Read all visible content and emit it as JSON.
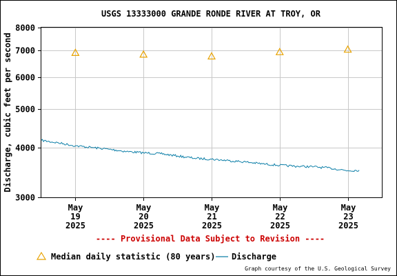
{
  "chart_data": {
    "type": "line",
    "title": "USGS 13333000 GRANDE RONDE RIVER AT TROY, OR",
    "ylabel": "Discharge, cubic feet per second",
    "xlabel": "",
    "y_scale": "log",
    "ylim": [
      3000,
      8000
    ],
    "y_ticks": [
      {
        "value": 3000,
        "label": "3000"
      },
      {
        "value": 4000,
        "label": "4000"
      },
      {
        "value": 5000,
        "label": "5000"
      },
      {
        "value": 6000,
        "label": "6000"
      },
      {
        "value": 7000,
        "label": "7000"
      },
      {
        "value": 8000,
        "label": "8000"
      }
    ],
    "xlim": [
      "2025-05-18 12:00",
      "2025-05-23 12:00"
    ],
    "x_ticks": [
      {
        "value": "2025-05-19",
        "line1": "May",
        "line2": "19",
        "line3": "2025"
      },
      {
        "value": "2025-05-20",
        "line1": "May",
        "line2": "20",
        "line3": "2025"
      },
      {
        "value": "2025-05-21",
        "line1": "May",
        "line2": "21",
        "line3": "2025"
      },
      {
        "value": "2025-05-22",
        "line1": "May",
        "line2": "22",
        "line3": "2025"
      },
      {
        "value": "2025-05-23",
        "line1": "May",
        "line2": "23",
        "line3": "2025"
      }
    ],
    "grid": true,
    "series": [
      {
        "name": "Median daily statistic (80 years)",
        "type": "scatter",
        "marker": "triangle",
        "color": "#E8A200",
        "x": [
          "2025-05-19",
          "2025-05-20",
          "2025-05-21",
          "2025-05-22",
          "2025-05-23"
        ],
        "values": [
          6920,
          6850,
          6780,
          6950,
          7050
        ]
      },
      {
        "name": "Discharge",
        "type": "line",
        "color": "#0D7FA8",
        "x": [
          "2025-05-18 12:00",
          "2025-05-18 18:00",
          "2025-05-19 00:00",
          "2025-05-19 06:00",
          "2025-05-19 12:00",
          "2025-05-19 18:00",
          "2025-05-20 00:00",
          "2025-05-20 06:00",
          "2025-05-20 12:00",
          "2025-05-20 18:00",
          "2025-05-21 00:00",
          "2025-05-21 06:00",
          "2025-05-21 12:00",
          "2025-05-21 18:00",
          "2025-05-22 00:00",
          "2025-05-22 06:00",
          "2025-05-22 12:00",
          "2025-05-22 18:00",
          "2025-05-23 00:00",
          "2025-05-23 04:00"
        ],
        "values": [
          4170,
          4110,
          4040,
          4000,
          3960,
          3910,
          3880,
          3860,
          3810,
          3760,
          3740,
          3710,
          3680,
          3640,
          3610,
          3590,
          3580,
          3550,
          3500,
          3510
        ]
      }
    ],
    "legend_placement": "bottom"
  },
  "provisional_notice": "---- Provisional Data Subject to Revision ----",
  "legend": {
    "median_label": "Median daily statistic (80 years)",
    "discharge_label": "Discharge"
  },
  "credit": "Graph courtesy of the U.S. Geological Survey",
  "colors": {
    "notice": "#CC0000",
    "median": "#E8A200",
    "discharge": "#0D7FA8",
    "grid": "#C8C8C8",
    "frame": "#000000"
  }
}
